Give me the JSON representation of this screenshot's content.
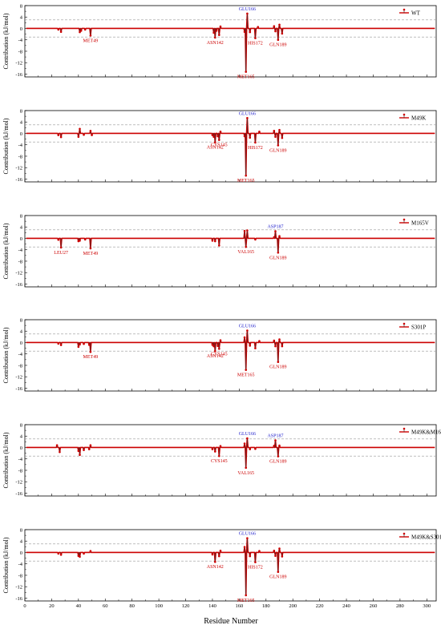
{
  "figure": {
    "ylabel": "Contribution (kJ/mol)",
    "xlabel": "Residue Number",
    "x_ticks": [
      0,
      20,
      40,
      60,
      80,
      100,
      120,
      140,
      160,
      180,
      200,
      220,
      240,
      260,
      280,
      300
    ]
  },
  "colors": {
    "line": "#cc0000",
    "mark": "#cc0000",
    "stem": "#333333",
    "highlight_label": "#2222cc",
    "label": "#cc0000",
    "fill": "#f2c6c6",
    "threshold": "#999999"
  },
  "chart_data": [
    {
      "type": "line",
      "legend": "WT",
      "legend_position": "top-right",
      "xlim": [
        0,
        307
      ],
      "ylim": [
        -17,
        8
      ],
      "y_ticks": [
        8,
        4,
        0,
        -4,
        -8,
        -12,
        -16
      ],
      "minor_y_ticks": [
        6,
        2,
        -2,
        -6,
        -10,
        -14
      ],
      "threshold_lines": [
        3,
        -3
      ],
      "points": [
        [
          25,
          -0.4
        ],
        [
          27,
          -1.2
        ],
        [
          41,
          -1.3
        ],
        [
          42,
          -0.8
        ],
        [
          45,
          -0.4
        ],
        [
          49,
          -2.5
        ],
        [
          141,
          -1.5
        ],
        [
          142,
          -3.2
        ],
        [
          143,
          -0.8
        ],
        [
          145,
          -2.3
        ],
        [
          146,
          0.7
        ],
        [
          164,
          -1.2
        ],
        [
          165,
          -15.2
        ],
        [
          166,
          5.2
        ],
        [
          168,
          -1.3
        ],
        [
          172,
          -3.4
        ],
        [
          174,
          0.5
        ],
        [
          186,
          0.8
        ],
        [
          187,
          -1.0
        ],
        [
          189,
          -4.0
        ],
        [
          190,
          1.3
        ],
        [
          192,
          -1.8
        ]
      ],
      "labels": [
        {
          "text": "MET49",
          "x": 49,
          "y": -2.5,
          "pos": "below",
          "highlight": false
        },
        {
          "text": "ASN142",
          "x": 142,
          "y": -3.2,
          "pos": "below",
          "highlight": false
        },
        {
          "text": "MET165",
          "x": 165,
          "y": -15.2,
          "pos": "below",
          "highlight": false
        },
        {
          "text": "GLU166",
          "x": 166,
          "y": 5.2,
          "pos": "above",
          "highlight": true
        },
        {
          "text": "HIS172",
          "x": 172,
          "y": -3.4,
          "pos": "below",
          "highlight": false
        },
        {
          "text": "GLN189",
          "x": 189,
          "y": -4.0,
          "pos": "below",
          "highlight": false
        }
      ]
    },
    {
      "type": "line",
      "legend": "M49K",
      "legend_position": "top-right",
      "xlim": [
        0,
        307
      ],
      "ylim": [
        -17,
        8
      ],
      "y_ticks": [
        8,
        4,
        0,
        -4,
        -8,
        -12,
        -16
      ],
      "minor_y_ticks": [
        6,
        2,
        -2,
        -6,
        -10,
        -14
      ],
      "threshold_lines": [
        3,
        -3
      ],
      "points": [
        [
          25,
          -0.6
        ],
        [
          27,
          -1.3
        ],
        [
          40,
          -1.2
        ],
        [
          41,
          1.6
        ],
        [
          44,
          -0.5
        ],
        [
          49,
          0.9
        ],
        [
          50,
          -0.6
        ],
        [
          140,
          -0.6
        ],
        [
          141,
          -1.2
        ],
        [
          142,
          -3.1
        ],
        [
          144,
          -1.0
        ],
        [
          145,
          -2.3
        ],
        [
          146,
          0.6
        ],
        [
          164,
          -1.0
        ],
        [
          165,
          -14.8
        ],
        [
          166,
          5.4
        ],
        [
          168,
          -1.5
        ],
        [
          172,
          -3.2
        ],
        [
          175,
          0.6
        ],
        [
          186,
          0.9
        ],
        [
          187,
          -1.2
        ],
        [
          189,
          -4.2
        ],
        [
          190,
          1.2
        ],
        [
          192,
          -1.6
        ]
      ],
      "labels": [
        {
          "text": "ASN142",
          "x": 142,
          "y": -3.1,
          "pos": "below",
          "highlight": false
        },
        {
          "text": "CYS145",
          "x": 145,
          "y": -2.3,
          "pos": "below",
          "highlight": false
        },
        {
          "text": "MET165",
          "x": 165,
          "y": -14.8,
          "pos": "below",
          "highlight": false
        },
        {
          "text": "GLU166",
          "x": 166,
          "y": 5.4,
          "pos": "above",
          "highlight": true
        },
        {
          "text": "HIS172",
          "x": 172,
          "y": -3.2,
          "pos": "below",
          "highlight": false
        },
        {
          "text": "GLN189",
          "x": 189,
          "y": -4.2,
          "pos": "below",
          "highlight": false
        }
      ]
    },
    {
      "type": "line",
      "legend": "M165V",
      "legend_position": "top-right",
      "xlim": [
        0,
        307
      ],
      "ylim": [
        -17,
        8
      ],
      "y_ticks": [
        8,
        4,
        0,
        -4,
        -8,
        -12,
        -16
      ],
      "minor_y_ticks": [
        6,
        2,
        -2,
        -6,
        -10,
        -14
      ],
      "threshold_lines": [
        3,
        -3
      ],
      "points": [
        [
          25,
          -0.5
        ],
        [
          27,
          -3.2
        ],
        [
          40,
          -1.0
        ],
        [
          41,
          -0.8
        ],
        [
          45,
          -0.4
        ],
        [
          49,
          -3.5
        ],
        [
          140,
          -0.8
        ],
        [
          142,
          -1.0
        ],
        [
          145,
          -2.5
        ],
        [
          164,
          2.6
        ],
        [
          165,
          -3.0
        ],
        [
          166,
          2.8
        ],
        [
          172,
          -0.4
        ],
        [
          186,
          0.4
        ],
        [
          187,
          2.5
        ],
        [
          189,
          -5.0
        ],
        [
          190,
          0.8
        ]
      ],
      "labels": [
        {
          "text": "LEU27",
          "x": 27,
          "y": -3.2,
          "pos": "below",
          "highlight": false
        },
        {
          "text": "MET49",
          "x": 49,
          "y": -3.5,
          "pos": "below",
          "highlight": false
        },
        {
          "text": "VAL165",
          "x": 165,
          "y": -3.0,
          "pos": "below",
          "highlight": false
        },
        {
          "text": "ASP187",
          "x": 187,
          "y": 2.5,
          "pos": "above",
          "highlight": true
        },
        {
          "text": "GLN189",
          "x": 189,
          "y": -5.0,
          "pos": "below",
          "highlight": false
        }
      ]
    },
    {
      "type": "line",
      "legend": "S301P",
      "legend_position": "top-right",
      "xlim": [
        0,
        307
      ],
      "ylim": [
        -17,
        8
      ],
      "y_ticks": [
        8,
        4,
        0,
        -4,
        -8,
        -12,
        -16
      ],
      "minor_y_ticks": [
        6,
        2,
        -2,
        -6,
        -10,
        -14
      ],
      "threshold_lines": [
        3,
        -3
      ],
      "points": [
        [
          25,
          -0.4
        ],
        [
          27,
          -0.9
        ],
        [
          40,
          -1.5
        ],
        [
          41,
          -0.7
        ],
        [
          44,
          -0.5
        ],
        [
          48,
          -0.8
        ],
        [
          49,
          -3.3
        ],
        [
          140,
          -0.8
        ],
        [
          141,
          -1.3
        ],
        [
          142,
          -3.0
        ],
        [
          144,
          -1.2
        ],
        [
          145,
          -2.2
        ],
        [
          146,
          0.8
        ],
        [
          164,
          1.8
        ],
        [
          165,
          -9.6
        ],
        [
          166,
          4.2
        ],
        [
          168,
          -1.1
        ],
        [
          172,
          -2.0
        ],
        [
          175,
          0.5
        ],
        [
          186,
          0.7
        ],
        [
          187,
          -1.3
        ],
        [
          189,
          -6.8
        ],
        [
          190,
          1.1
        ],
        [
          192,
          -1.3
        ]
      ],
      "labels": [
        {
          "text": "MET49",
          "x": 49,
          "y": -3.3,
          "pos": "below",
          "highlight": false
        },
        {
          "text": "ASN142",
          "x": 142,
          "y": -3.0,
          "pos": "below",
          "highlight": false
        },
        {
          "text": "CYS145",
          "x": 145,
          "y": -2.2,
          "pos": "below",
          "highlight": false
        },
        {
          "text": "MET165",
          "x": 165,
          "y": -9.6,
          "pos": "below",
          "highlight": false
        },
        {
          "text": "GLU166",
          "x": 166,
          "y": 4.2,
          "pos": "above",
          "highlight": true
        },
        {
          "text": "GLN189",
          "x": 189,
          "y": -6.8,
          "pos": "below",
          "highlight": false
        }
      ]
    },
    {
      "type": "line",
      "legend": "M49K&M165V",
      "legend_position": "top-right",
      "xlim": [
        0,
        307
      ],
      "ylim": [
        -17,
        8
      ],
      "y_ticks": [
        8,
        4,
        0,
        -4,
        -8,
        -12,
        -16
      ],
      "minor_y_ticks": [
        6,
        2,
        -2,
        -6,
        -10,
        -14
      ],
      "threshold_lines": [
        3,
        -3
      ],
      "points": [
        [
          24,
          0.8
        ],
        [
          26,
          -1.6
        ],
        [
          40,
          -1.2
        ],
        [
          41,
          -2.6
        ],
        [
          44,
          -0.9
        ],
        [
          48,
          -0.6
        ],
        [
          49,
          0.8
        ],
        [
          140,
          -0.6
        ],
        [
          142,
          -1.4
        ],
        [
          145,
          -3.0
        ],
        [
          146,
          0.5
        ],
        [
          164,
          1.4
        ],
        [
          165,
          -7.1
        ],
        [
          166,
          3.2
        ],
        [
          168,
          -0.6
        ],
        [
          172,
          -0.5
        ],
        [
          186,
          0.6
        ],
        [
          187,
          2.5
        ],
        [
          189,
          -3.1
        ],
        [
          190,
          0.7
        ]
      ],
      "labels": [
        {
          "text": "CYS145",
          "x": 145,
          "y": -3.0,
          "pos": "below",
          "highlight": false
        },
        {
          "text": "VAL165",
          "x": 165,
          "y": -7.1,
          "pos": "below",
          "highlight": false
        },
        {
          "text": "GLU166",
          "x": 166,
          "y": 3.2,
          "pos": "above",
          "highlight": true
        },
        {
          "text": "ASP187",
          "x": 187,
          "y": 2.5,
          "pos": "above",
          "highlight": true
        },
        {
          "text": "GLN189",
          "x": 189,
          "y": -3.1,
          "pos": "below",
          "highlight": false
        }
      ]
    },
    {
      "type": "line",
      "legend": "M49K&S301P",
      "legend_position": "top-right",
      "xlim": [
        0,
        307
      ],
      "ylim": [
        -17,
        8
      ],
      "y_ticks": [
        8,
        4,
        0,
        -4,
        -8,
        -12,
        -16
      ],
      "minor_y_ticks": [
        6,
        2,
        -2,
        -6,
        -10,
        -14
      ],
      "threshold_lines": [
        3,
        -3
      ],
      "points": [
        [
          25,
          -0.4
        ],
        [
          27,
          -0.8
        ],
        [
          40,
          -1.2
        ],
        [
          41,
          -1.5
        ],
        [
          44,
          -0.4
        ],
        [
          49,
          0.5
        ],
        [
          140,
          -0.7
        ],
        [
          142,
          -3.3
        ],
        [
          145,
          -1.3
        ],
        [
          146,
          0.6
        ],
        [
          164,
          1.9
        ],
        [
          165,
          -15.0
        ],
        [
          166,
          5.0
        ],
        [
          168,
          -1.3
        ],
        [
          172,
          -3.4
        ],
        [
          175,
          0.5
        ],
        [
          186,
          0.6
        ],
        [
          187,
          -1.2
        ],
        [
          189,
          -6.8
        ],
        [
          190,
          1.4
        ],
        [
          192,
          -1.4
        ]
      ],
      "labels": [
        {
          "text": "ASN142",
          "x": 142,
          "y": -3.3,
          "pos": "below",
          "highlight": false
        },
        {
          "text": "MET165",
          "x": 165,
          "y": -15.0,
          "pos": "below",
          "highlight": false
        },
        {
          "text": "GLU166",
          "x": 166,
          "y": 5.0,
          "pos": "above",
          "highlight": true
        },
        {
          "text": "HIS172",
          "x": 172,
          "y": -3.4,
          "pos": "below",
          "highlight": false
        },
        {
          "text": "GLN189",
          "x": 189,
          "y": -6.8,
          "pos": "below",
          "highlight": false
        }
      ]
    }
  ]
}
